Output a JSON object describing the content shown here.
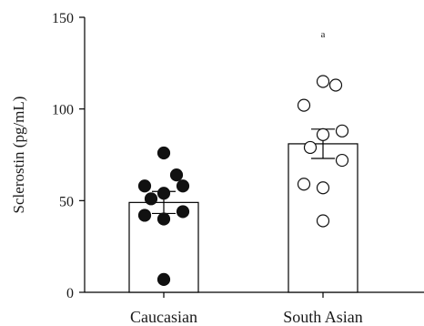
{
  "chart_data": {
    "type": "bar",
    "ylabel": "Sclerostin (pg/mL)",
    "ylim": [
      0,
      150
    ],
    "yticks": [
      0,
      50,
      100,
      150
    ],
    "grid": false,
    "categories": [
      "Caucasian",
      "South Asian"
    ],
    "values": [
      49,
      81
    ],
    "sem": [
      6,
      8
    ],
    "points": [
      {
        "category": "Caucasian",
        "style": "filled",
        "values": [
          76,
          64,
          58,
          58,
          54,
          51,
          44,
          42,
          40,
          7
        ]
      },
      {
        "category": "South Asian",
        "style": "open",
        "values": [
          115,
          113,
          102,
          88,
          86,
          79,
          72,
          59,
          57,
          39
        ]
      }
    ],
    "annotations": [
      {
        "category": "South Asian",
        "text": "a",
        "y": 139
      }
    ]
  }
}
